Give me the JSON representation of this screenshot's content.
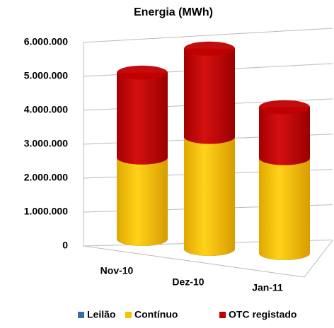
{
  "chart_data": {
    "type": "bar3d-cylinder-stacked",
    "title": "Energia (MWh)",
    "categories": [
      "Nov-10",
      "Dez-10",
      "Jan-11"
    ],
    "series": [
      {
        "name": "Leilão",
        "color": "#3c6aa8",
        "values": [
          0,
          0,
          0
        ]
      },
      {
        "name": "Contínuo",
        "color": "#f5c400",
        "values": [
          2400000,
          3300000,
          2800000
        ]
      },
      {
        "name": "OTC registado",
        "color": "#c00000",
        "values": [
          2500000,
          2600000,
          1500000
        ]
      }
    ],
    "ylim": [
      0,
      6000000
    ],
    "yticks": [
      0,
      {
        "value": 1000000,
        "label": "1.000.000"
      },
      {
        "value": 2000000,
        "label": "2.000.000"
      },
      {
        "value": 3000000,
        "label": "3.000.000"
      },
      {
        "value": 4000000,
        "label": "4.000.000"
      },
      {
        "value": 5000000,
        "label": "5.000.000"
      },
      {
        "value": 6000000,
        "label": "6.000.000"
      }
    ],
    "grid": true,
    "legend": "bottom"
  }
}
